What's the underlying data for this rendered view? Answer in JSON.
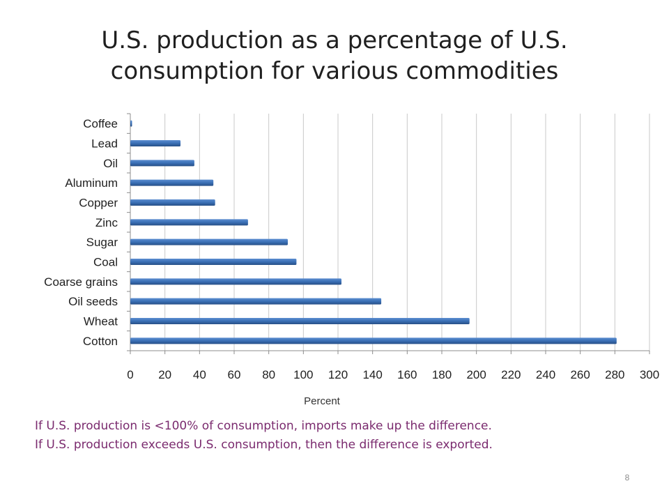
{
  "slide": {
    "title_line1": "U.S. production as a percentage of U.S.",
    "title_line2": "consumption for various commodities",
    "note_line1": "If U.S. production is <100% of consumption, imports make up the difference.",
    "note_line2": "If U.S. production exceeds U.S. consumption, then the difference is exported.",
    "page_number": "8"
  },
  "colors": {
    "bar": "#3a6fb5",
    "bar_dark": "#274f86",
    "grid": "#c8c8c8",
    "note_text": "#7a2a6e"
  },
  "chart_data": {
    "type": "bar",
    "orientation": "horizontal",
    "categories": [
      "Coffee",
      "Lead",
      "Oil",
      "Aluminum",
      "Copper",
      "Zinc",
      "Sugar",
      "Coal",
      "Coarse grains",
      "Oil seeds",
      "Wheat",
      "Cotton"
    ],
    "values": [
      1,
      29,
      37,
      48,
      49,
      68,
      91,
      96,
      122,
      145,
      196,
      281
    ],
    "title": "U.S. production as a percentage of U.S. consumption for various commodities",
    "xlabel": "Percent",
    "ylabel": "",
    "xlim": [
      0,
      300
    ],
    "xticks": [
      0,
      20,
      40,
      60,
      80,
      100,
      120,
      140,
      160,
      180,
      200,
      220,
      240,
      260,
      280,
      300
    ],
    "grid": true,
    "legend": "none"
  }
}
